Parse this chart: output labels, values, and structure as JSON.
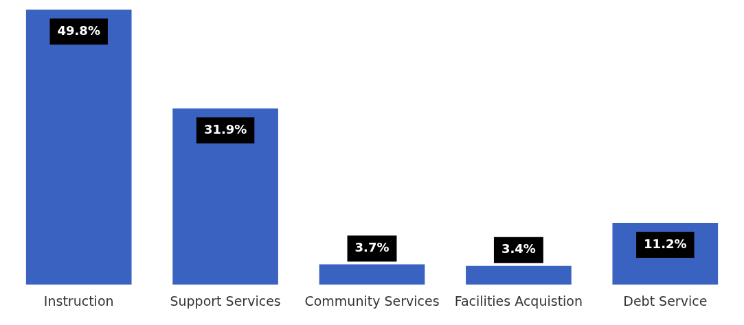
{
  "chart_data": {
    "type": "bar",
    "categories": [
      "Instruction",
      "Support Services",
      "Community Services",
      "Facilities Acquistion",
      "Debt Service"
    ],
    "values": [
      49.8,
      31.9,
      3.7,
      3.4,
      11.2
    ],
    "value_labels": [
      "49.8%",
      "31.9%",
      "3.7%",
      "3.4%",
      "11.2%"
    ],
    "color": "#3a62c0",
    "grid": false,
    "legend": false
  }
}
